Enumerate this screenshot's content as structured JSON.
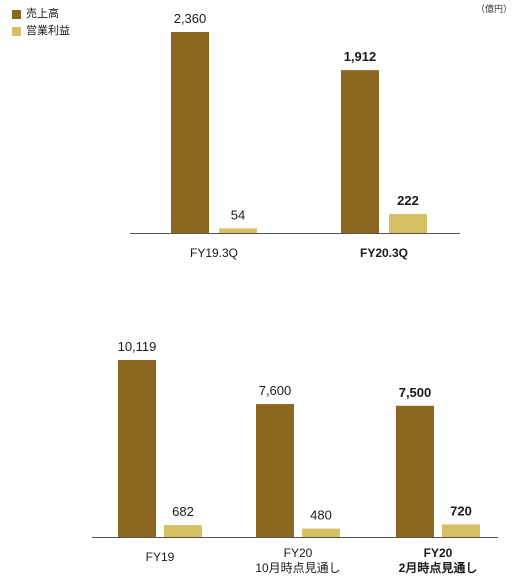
{
  "unit": "（億円）",
  "colors": {
    "sales": "#8b671f",
    "operating_profit": "#d7bf64",
    "axis": "#555555"
  },
  "legend": [
    {
      "label": "売上高",
      "color": "#8b671f"
    },
    {
      "label": "営業利益",
      "color": "#d7bf64"
    }
  ],
  "chart_data": [
    {
      "type": "bar",
      "categories": [
        {
          "lines": [
            "FY19.3Q"
          ],
          "bold": false
        },
        {
          "lines": [
            "FY20.3Q"
          ],
          "bold": true
        }
      ],
      "series": [
        {
          "name": "売上高",
          "values": [
            2360,
            1912
          ],
          "labels": [
            "2,360",
            "1,912"
          ]
        },
        {
          "name": "営業利益",
          "values": [
            54,
            222
          ],
          "labels": [
            "54",
            "222"
          ]
        }
      ],
      "xlabel": "",
      "ylabel": "",
      "ylim": [
        0,
        2360
      ]
    },
    {
      "type": "bar",
      "categories": [
        {
          "lines": [
            "FY19"
          ],
          "bold": false
        },
        {
          "lines": [
            "FY20",
            "10月時点見通し"
          ],
          "bold": false
        },
        {
          "lines": [
            "FY20",
            "2月時点見通し"
          ],
          "bold": true
        }
      ],
      "series": [
        {
          "name": "売上高",
          "values": [
            10119,
            7600,
            7500
          ],
          "labels": [
            "10,119",
            "7,600",
            "7,500"
          ]
        },
        {
          "name": "営業利益",
          "values": [
            682,
            480,
            720
          ],
          "labels": [
            "682",
            "480",
            "720"
          ]
        }
      ],
      "xlabel": "",
      "ylabel": "",
      "ylim": [
        0,
        10119
      ]
    }
  ]
}
